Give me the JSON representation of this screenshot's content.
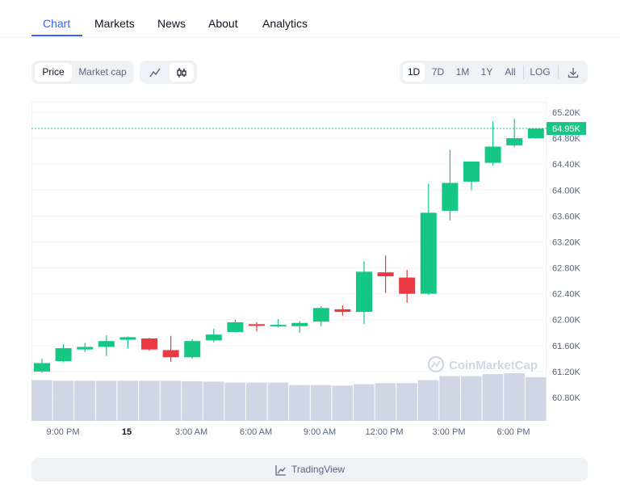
{
  "nav": {
    "tabs": [
      {
        "label": "Chart",
        "active": true
      },
      {
        "label": "Markets",
        "active": false
      },
      {
        "label": "News",
        "active": false
      },
      {
        "label": "About",
        "active": false
      },
      {
        "label": "Analytics",
        "active": false
      }
    ]
  },
  "toolbar": {
    "type_tabs": [
      "Price",
      "Market cap"
    ],
    "type_selected": "Price",
    "chart_style_icons": [
      "line-chart-icon",
      "candlestick-icon"
    ],
    "chart_style_selected": "candlestick-icon",
    "ranges": [
      "1D",
      "7D",
      "1M",
      "1Y",
      "All"
    ],
    "range_selected": "1D",
    "log_label": "LOG",
    "download_icon": "download-icon"
  },
  "watermark": "CoinMarketCap",
  "footer": {
    "label": "TradingView",
    "icon": "chart-line-icon"
  },
  "colors": {
    "up": "#16c784",
    "down": "#ea3943",
    "volume": "#cfd6e4",
    "accent": "#3861fb"
  },
  "chart_data": {
    "type": "candlestick",
    "x_ticks": [
      "9:00 PM",
      "15",
      "3:00 AM",
      "6:00 AM",
      "9:00 AM",
      "12:00 PM",
      "3:00 PM",
      "6:00 PM"
    ],
    "y_ticks": [
      "65.20K",
      "64.80K",
      "64.40K",
      "64.00K",
      "63.60K",
      "63.20K",
      "62.80K",
      "62.40K",
      "62.00K",
      "61.60K",
      "61.20K",
      "60.80K"
    ],
    "ylim": [
      60600,
      65350
    ],
    "current_price": 64950,
    "current_price_label": "64.95K",
    "candles": [
      {
        "o": 61200,
        "h": 61400,
        "l": 61180,
        "c": 61330
      },
      {
        "o": 61360,
        "h": 61620,
        "l": 61340,
        "c": 61560
      },
      {
        "o": 61540,
        "h": 61640,
        "l": 61500,
        "c": 61580
      },
      {
        "o": 61580,
        "h": 61760,
        "l": 61440,
        "c": 61670
      },
      {
        "o": 61690,
        "h": 61740,
        "l": 61560,
        "c": 61730
      },
      {
        "o": 61710,
        "h": 61720,
        "l": 61520,
        "c": 61540
      },
      {
        "o": 61530,
        "h": 61750,
        "l": 61350,
        "c": 61420
      },
      {
        "o": 61420,
        "h": 61700,
        "l": 61400,
        "c": 61670
      },
      {
        "o": 61680,
        "h": 61860,
        "l": 61650,
        "c": 61770
      },
      {
        "o": 61810,
        "h": 62000,
        "l": 61800,
        "c": 61960
      },
      {
        "o": 61930,
        "h": 61960,
        "l": 61820,
        "c": 61920
      },
      {
        "o": 61910,
        "h": 62010,
        "l": 61880,
        "c": 61920
      },
      {
        "o": 61900,
        "h": 61980,
        "l": 61800,
        "c": 61950
      },
      {
        "o": 61970,
        "h": 62210,
        "l": 61900,
        "c": 62180
      },
      {
        "o": 62160,
        "h": 62220,
        "l": 62060,
        "c": 62120
      },
      {
        "o": 62120,
        "h": 62900,
        "l": 61930,
        "c": 62740
      },
      {
        "o": 62730,
        "h": 62990,
        "l": 62410,
        "c": 62670
      },
      {
        "o": 62650,
        "h": 62770,
        "l": 62260,
        "c": 62400
      },
      {
        "o": 62400,
        "h": 64100,
        "l": 62380,
        "c": 63650
      },
      {
        "o": 63680,
        "h": 64620,
        "l": 63530,
        "c": 64110
      },
      {
        "o": 64130,
        "h": 64430,
        "l": 64000,
        "c": 64440
      },
      {
        "o": 64420,
        "h": 65060,
        "l": 64380,
        "c": 64670
      },
      {
        "o": 64690,
        "h": 65100,
        "l": 64660,
        "c": 64800
      },
      {
        "o": 64800,
        "h": 64950,
        "l": 64790,
        "c": 64950
      }
    ],
    "volume": [
      0.82,
      0.81,
      0.81,
      0.81,
      0.81,
      0.81,
      0.81,
      0.8,
      0.79,
      0.77,
      0.77,
      0.77,
      0.72,
      0.72,
      0.71,
      0.74,
      0.76,
      0.76,
      0.82,
      0.9,
      0.9,
      0.94,
      0.96,
      0.88
    ]
  }
}
